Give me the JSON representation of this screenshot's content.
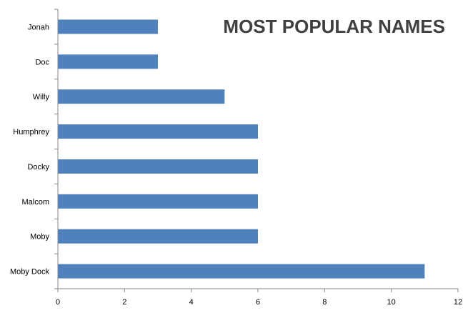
{
  "chart_data": {
    "type": "bar",
    "orientation": "horizontal",
    "title": "MOST POPULAR NAMES",
    "categories": [
      "Jonah",
      "Doc",
      "Willy",
      "Humphrey",
      "Docky",
      "Malcom",
      "Moby",
      "Moby Dock"
    ],
    "values": [
      3,
      3,
      5,
      6,
      6,
      6,
      6,
      11
    ],
    "xlim": [
      0,
      12
    ],
    "xticks": [
      0,
      2,
      4,
      6,
      8,
      10,
      12
    ],
    "tick_labels": [
      "0",
      "2",
      "4",
      "6",
      "8",
      "10",
      "12"
    ],
    "grid": false,
    "legend": "none",
    "bar_color": "#4F81BD"
  }
}
